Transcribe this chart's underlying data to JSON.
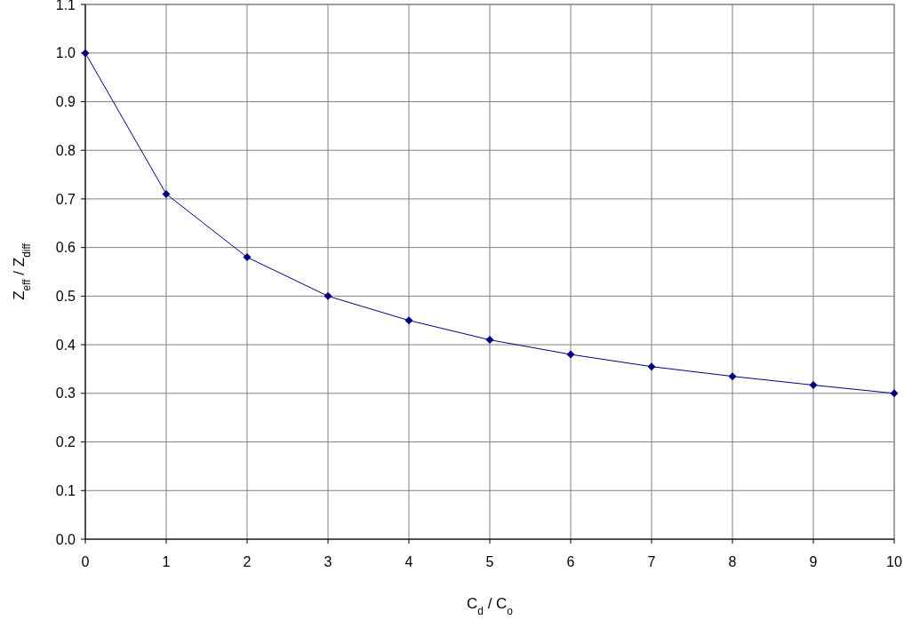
{
  "chart_data": {
    "type": "line",
    "xlabel": "C$_{d}$ / C$_{o}$",
    "ylabel": "Z$_{eff}$ / Z$_{diff}$",
    "x": [
      0,
      1,
      2,
      3,
      4,
      5,
      6,
      7,
      8,
      9,
      10
    ],
    "series": [
      {
        "color": "#000080",
        "values": [
          1.0,
          0.71,
          0.58,
          0.5,
          0.45,
          0.41,
          0.38,
          0.355,
          0.335,
          0.317,
          0.3
        ]
      }
    ],
    "xlim": [
      0,
      10
    ],
    "xticks": [
      0,
      1,
      2,
      3,
      4,
      5,
      6,
      7,
      8,
      9,
      10
    ],
    "ylim": [
      0,
      1.1
    ],
    "yticks": [
      {
        "value": 0,
        "label": "0.0"
      },
      0.1,
      0.2,
      0.3,
      0.4,
      0.5,
      0.6,
      0.7,
      0.8,
      0.9,
      {
        "value": 1,
        "label": "1.0"
      },
      1.1
    ],
    "grid": true,
    "marker": "diamond",
    "line_style": "solid"
  }
}
